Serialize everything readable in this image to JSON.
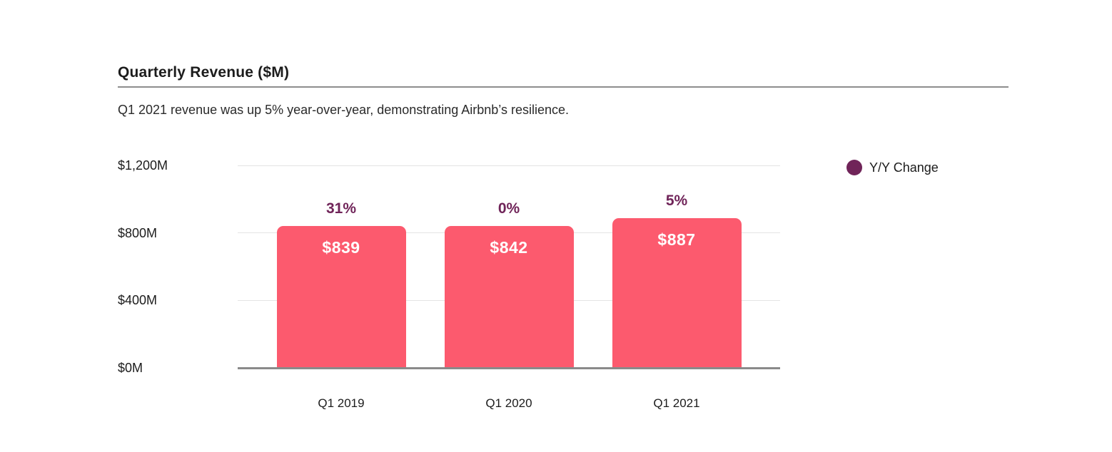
{
  "page": {
    "title": "Quarterly Revenue ($M)",
    "subtitle": "Q1 2021 revenue was up 5% year-over-year, demonstrating Airbnb’s resilience."
  },
  "legend": {
    "label": "Y/Y Change",
    "dot_color": "#702459"
  },
  "colors": {
    "bar": "#FC5A6E",
    "pct_label": "#702459",
    "value_label": "#FFFFFF",
    "gridline": "#E4E4E4",
    "baseline": "#8A8A8A",
    "title_rule": "#8D8D8D"
  },
  "chart_data": {
    "type": "bar",
    "title": "Quarterly Revenue ($M)",
    "subtitle": "Q1 2021 revenue was up 5% year-over-year, demonstrating Airbnb’s resilience.",
    "categories": [
      "Q1 2019",
      "Q1 2020",
      "Q1 2021"
    ],
    "values": [
      839,
      842,
      887
    ],
    "value_labels": [
      "$839",
      "$842",
      "$887"
    ],
    "series": [
      {
        "name": "Revenue",
        "values": [
          839,
          842,
          887
        ]
      },
      {
        "name": "Y/Y Change",
        "values_pct": [
          31,
          0,
          5
        ],
        "labels": [
          "31%",
          "0%",
          "5%"
        ]
      }
    ],
    "xlabel": "",
    "ylabel": "",
    "ylim": [
      0,
      1200
    ],
    "y_tick_values": [
      0,
      400,
      800,
      1200
    ],
    "y_tick_labels": [
      "$0M",
      "$400M",
      "$800M",
      "$1,200M"
    ],
    "grid": true,
    "legend_position": "right",
    "legend_entries": [
      "Y/Y Change"
    ]
  }
}
